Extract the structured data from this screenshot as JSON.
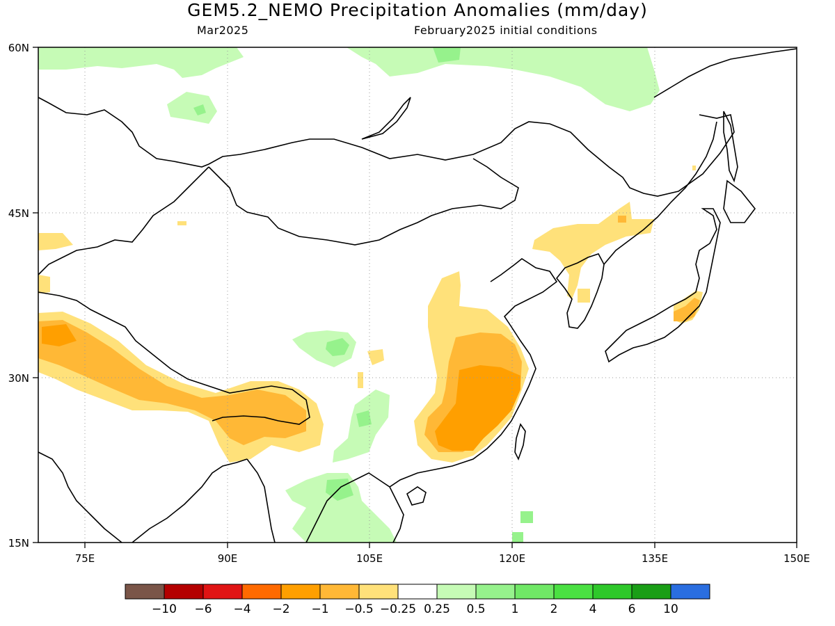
{
  "title": "GEM5.2_NEMO Precipitation Anomalies (mm/day)",
  "subtitle_left": "Mar2025",
  "subtitle_right": "February2025 initial conditions",
  "map": {
    "lon_range": [
      70,
      150
    ],
    "lat_range": [
      15,
      60
    ],
    "lat_ticks": [
      "60N",
      "45N",
      "30N",
      "15N"
    ],
    "lon_ticks": [
      "75E",
      "90E",
      "105E",
      "120E",
      "135E",
      "150E"
    ]
  },
  "colorbar": {
    "colors": [
      "#7a5548",
      "#b40000",
      "#e01414",
      "#ff6a00",
      "#ff9f00",
      "#ffb836",
      "#ffe17a",
      "#ffffff",
      "#c6fbb6",
      "#96f28c",
      "#70e866",
      "#4ae042",
      "#2ec82a",
      "#1a9e16",
      "#2a6ee0"
    ],
    "labels": [
      "-10",
      "-6",
      "-4",
      "-2",
      "-1",
      "-0.5",
      "-0.25",
      "0.25",
      "0.5",
      "1",
      "2",
      "4",
      "6",
      "10"
    ]
  },
  "legend_colors": {
    "dry_light": "#ffe17a",
    "dry_mid": "#ffb836",
    "dry_strong": "#ff9f00",
    "wet_light": "#c6fbb6",
    "wet_mid": "#96f28c",
    "wet_strong": "#70e866"
  }
}
